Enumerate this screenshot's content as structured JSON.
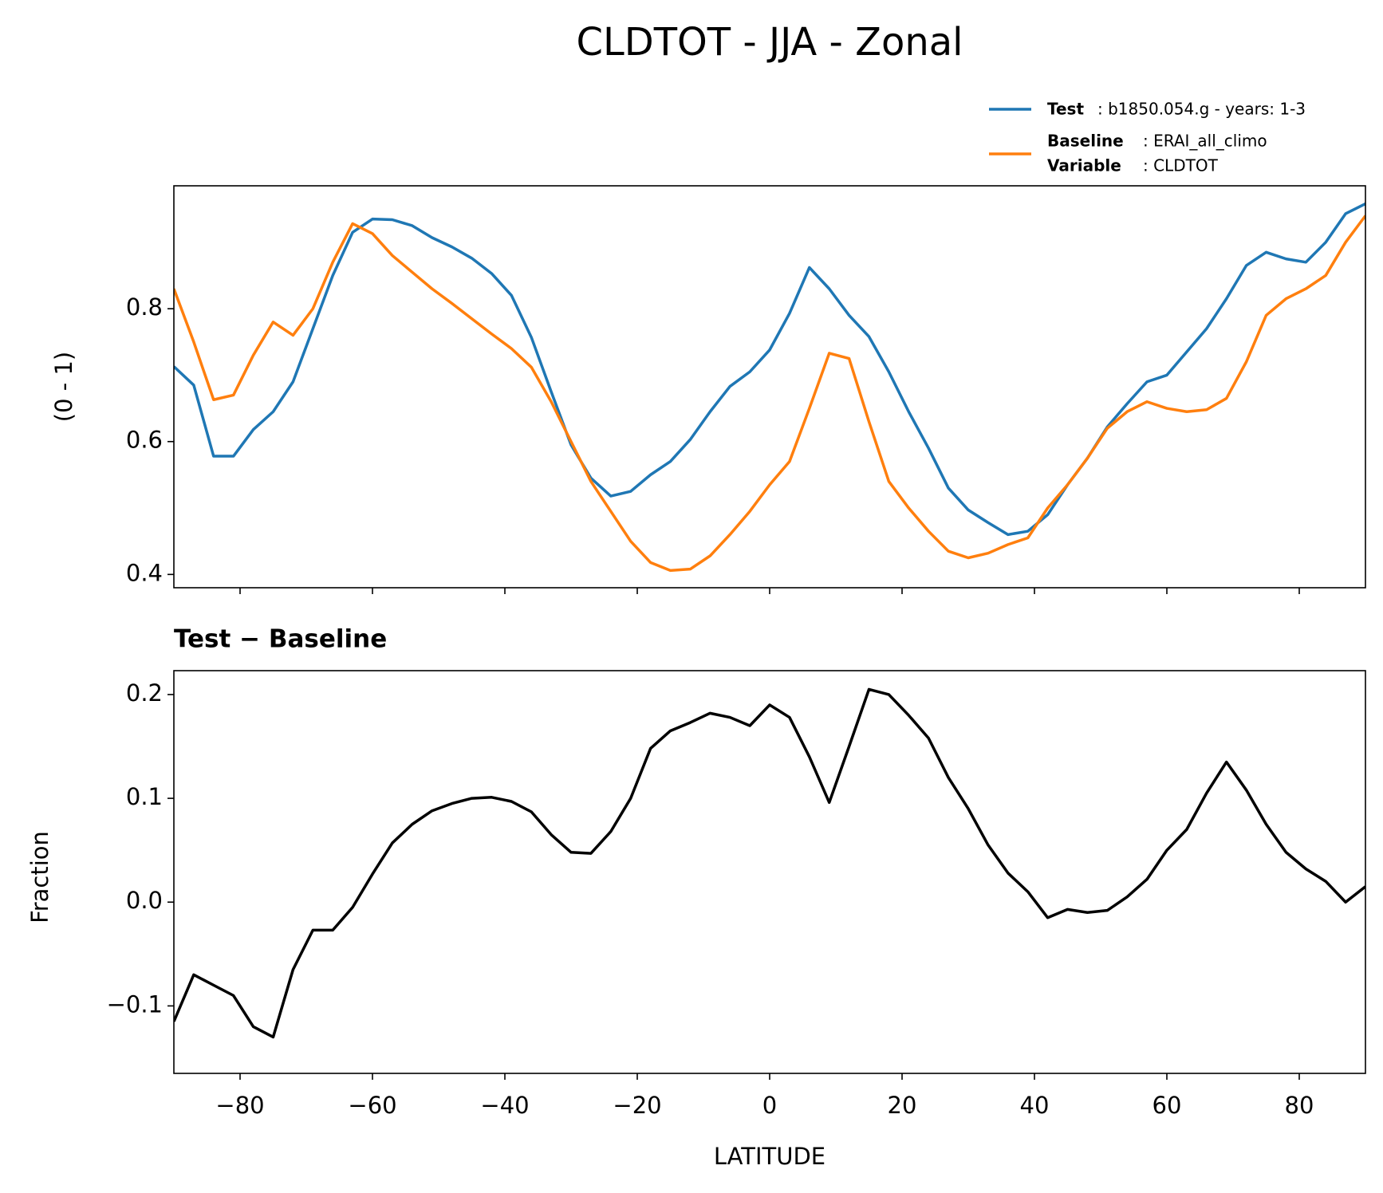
{
  "chart_data": [
    {
      "type": "line",
      "title": "CLDTOT - JJA - Zonal",
      "ylabel": "(0 - 1)",
      "x": [
        -90,
        -87,
        -84,
        -81,
        -78,
        -75,
        -72,
        -69,
        -66,
        -63,
        -60,
        -57,
        -54,
        -51,
        -48,
        -45,
        -42,
        -39,
        -36,
        -33,
        -30,
        -27,
        -24,
        -21,
        -18,
        -15,
        -12,
        -9,
        -6,
        -3,
        0,
        3,
        6,
        9,
        12,
        15,
        18,
        21,
        24,
        27,
        30,
        33,
        36,
        39,
        42,
        45,
        48,
        51,
        54,
        57,
        60,
        63,
        66,
        69,
        72,
        75,
        78,
        81,
        84,
        87,
        90
      ],
      "series": [
        {
          "name": "Test",
          "detail": ": b1850.054.g - years: 1-3",
          "color": "#1f77b4",
          "values": [
            0.713,
            0.685,
            0.578,
            0.578,
            0.618,
            0.645,
            0.69,
            0.77,
            0.85,
            0.915,
            0.935,
            0.934,
            0.925,
            0.907,
            0.893,
            0.876,
            0.853,
            0.82,
            0.757,
            0.675,
            0.595,
            0.545,
            0.518,
            0.525,
            0.55,
            0.57,
            0.603,
            0.645,
            0.683,
            0.705,
            0.738,
            0.793,
            0.862,
            0.83,
            0.79,
            0.758,
            0.705,
            0.645,
            0.59,
            0.53,
            0.497,
            0.478,
            0.46,
            0.465,
            0.49,
            0.535,
            0.575,
            0.622,
            0.657,
            0.69,
            0.7,
            0.735,
            0.77,
            0.815,
            0.865,
            0.885,
            0.875,
            0.87,
            0.9,
            0.943,
            0.958
          ]
        },
        {
          "name": "Baseline",
          "detail": ": ERAI_all_climo",
          "color": "#ff7f0e",
          "values": [
            0.83,
            0.75,
            0.663,
            0.67,
            0.73,
            0.78,
            0.76,
            0.8,
            0.87,
            0.928,
            0.913,
            0.88,
            0.855,
            0.83,
            0.808,
            0.785,
            0.762,
            0.74,
            0.712,
            0.66,
            0.6,
            0.54,
            0.495,
            0.45,
            0.418,
            0.406,
            0.408,
            0.428,
            0.46,
            0.495,
            0.535,
            0.57,
            0.65,
            0.733,
            0.725,
            0.63,
            0.54,
            0.5,
            0.465,
            0.435,
            0.425,
            0.432,
            0.445,
            0.455,
            0.5,
            0.535,
            0.575,
            0.62,
            0.645,
            0.66,
            0.65,
            0.645,
            0.648,
            0.665,
            0.72,
            0.79,
            0.815,
            0.83,
            0.85,
            0.9,
            0.94
          ]
        }
      ],
      "legend_variable": {
        "name": "Variable",
        "detail": ": CLDTOT"
      },
      "xlim": [
        -90,
        90
      ],
      "xticks": [
        {
          "value": -80,
          "label": "−80"
        },
        {
          "value": -60,
          "label": "−60"
        },
        {
          "value": -40,
          "label": "−40"
        },
        {
          "value": -20,
          "label": "−20"
        },
        0,
        20,
        40,
        60,
        80
      ],
      "ylim": [
        0.38,
        0.985
      ],
      "yticks": [
        0.4,
        0.6,
        0.8
      ]
    },
    {
      "type": "line",
      "title": "Test − Baseline",
      "ylabel": "Fraction",
      "xlabel": "LATITUDE",
      "x": [
        -90,
        -87,
        -84,
        -81,
        -78,
        -75,
        -72,
        -69,
        -66,
        -63,
        -60,
        -57,
        -54,
        -51,
        -48,
        -45,
        -42,
        -39,
        -36,
        -33,
        -30,
        -27,
        -24,
        -21,
        -18,
        -15,
        -12,
        -9,
        -6,
        -3,
        0,
        3,
        6,
        9,
        12,
        15,
        18,
        21,
        24,
        27,
        30,
        33,
        36,
        39,
        42,
        45,
        48,
        51,
        54,
        57,
        60,
        63,
        66,
        69,
        72,
        75,
        78,
        81,
        84,
        87,
        90
      ],
      "series": [
        {
          "color": "#000000",
          "values": [
            -0.115,
            -0.07,
            -0.08,
            -0.09,
            -0.12,
            -0.13,
            -0.065,
            -0.027,
            -0.027,
            -0.005,
            0.027,
            0.057,
            0.075,
            0.088,
            0.095,
            0.1,
            0.101,
            0.097,
            0.087,
            0.065,
            0.048,
            0.047,
            0.068,
            0.1,
            0.148,
            0.165,
            0.173,
            0.182,
            0.178,
            0.17,
            0.19,
            0.178,
            0.14,
            0.096,
            0.15,
            0.205,
            0.2,
            0.18,
            0.158,
            0.12,
            0.09,
            0.055,
            0.028,
            0.01,
            -0.015,
            -0.007,
            -0.01,
            -0.008,
            0.005,
            0.022,
            0.05,
            0.07,
            0.105,
            0.135,
            0.108,
            0.075,
            0.048,
            0.032,
            0.02,
            0,
            0.015
          ]
        }
      ],
      "xlim": [
        -90,
        90
      ],
      "xticks": [
        {
          "value": -80,
          "label": "−80"
        },
        {
          "value": -60,
          "label": "−60"
        },
        {
          "value": -40,
          "label": "−40"
        },
        {
          "value": -20,
          "label": "−20"
        },
        0,
        20,
        40,
        60,
        80
      ],
      "ylim": [
        -0.165,
        0.223
      ],
      "yticks": [
        {
          "value": -0.1,
          "label": "−0.1"
        },
        {
          "value": 0,
          "label": "0.0"
        },
        0.1,
        0.2
      ]
    }
  ]
}
